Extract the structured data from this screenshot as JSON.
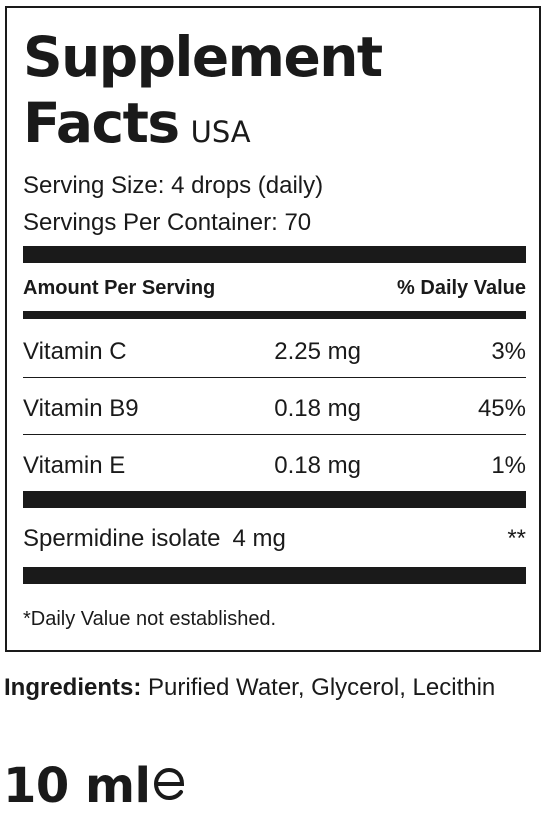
{
  "label": {
    "title_line1": "Supplement",
    "title_line2": "Facts",
    "country": "USA",
    "serving_size": "Serving Size: 4 drops (daily)",
    "servings_per_container": "Servings Per Container: 70",
    "header_left": "Amount Per Serving",
    "header_right": "% Daily Value",
    "nutrients": [
      {
        "name": "Vitamin C",
        "amount": "2.25 mg",
        "dv": "3%"
      },
      {
        "name": "Vitamin B9",
        "amount": "0.18 mg",
        "dv": "45%"
      },
      {
        "name": "Vitamin E",
        "amount": "0.18 mg",
        "dv": "1%"
      }
    ],
    "special": {
      "name": "Spermidine isolate",
      "amount": "4 mg",
      "dv": "**"
    },
    "footnote": "*Daily Value not established."
  },
  "ingredients": {
    "label": "Ingredients:",
    "text": " Purified Water, Glycerol, Lecithin"
  },
  "volume": {
    "text": "10 ml",
    "icon": "estimated-sign-icon"
  }
}
